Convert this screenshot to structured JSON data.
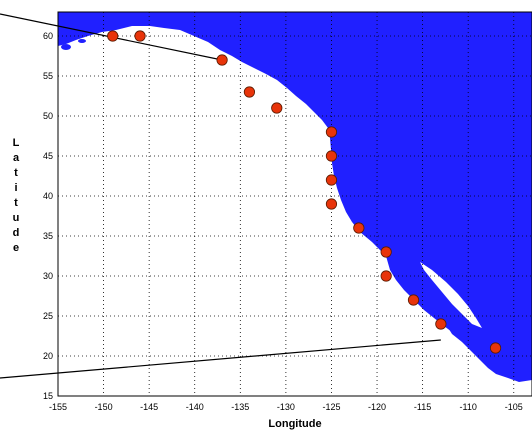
{
  "chart_data": {
    "type": "scatter",
    "title": "",
    "xlabel": "Longitude",
    "ylabel": "Latitude",
    "xlim": [
      -155,
      -103
    ],
    "ylim": [
      15,
      63
    ],
    "xticks": [
      "-155",
      "-150",
      "-145",
      "-140",
      "-135",
      "-130",
      "-125",
      "-120",
      "-115",
      "-110",
      "-105"
    ],
    "yticks": [
      "15",
      "20",
      "25",
      "30",
      "35",
      "40",
      "45",
      "50",
      "55",
      "60"
    ],
    "grid": true,
    "colors": {
      "ocean": "#ffffff",
      "land": "#2020ff",
      "marker": "#e8340a"
    },
    "points": [
      {
        "lon": -149,
        "lat": 60
      },
      {
        "lon": -146,
        "lat": 60
      },
      {
        "lon": -137,
        "lat": 57
      },
      {
        "lon": -134,
        "lat": 53
      },
      {
        "lon": -131,
        "lat": 51
      },
      {
        "lon": -125,
        "lat": 48
      },
      {
        "lon": -125,
        "lat": 45
      },
      {
        "lon": -125,
        "lat": 42
      },
      {
        "lon": -125,
        "lat": 39
      },
      {
        "lon": -122,
        "lat": 36
      },
      {
        "lon": -119,
        "lat": 33
      },
      {
        "lon": -119,
        "lat": 30
      },
      {
        "lon": -116,
        "lat": 27
      },
      {
        "lon": -113,
        "lat": 24
      },
      {
        "lon": -107,
        "lat": 21
      }
    ],
    "callout_lines": [
      {
        "to_lon": -137,
        "to_lat": 57
      },
      {
        "to_lon": -113,
        "to_lat": 22
      }
    ]
  }
}
